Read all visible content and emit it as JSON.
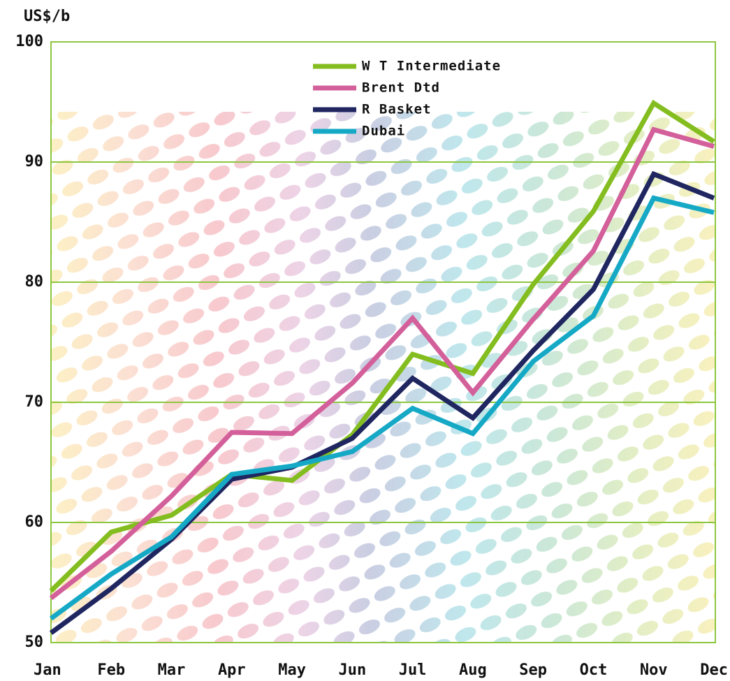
{
  "chart_data": {
    "type": "line",
    "y_label": "US$/b",
    "categories": [
      "Jan",
      "Feb",
      "Mar",
      "Apr",
      "May",
      "Jun",
      "Jul",
      "Aug",
      "Sep",
      "Oct",
      "Nov",
      "Dec"
    ],
    "series": [
      {
        "name": "W T Intermediate",
        "color": "#84bd1f",
        "values": [
          54.3,
          59.2,
          60.6,
          64.0,
          63.5,
          67.3,
          74.0,
          72.4,
          79.8,
          85.9,
          94.9,
          91.7
        ]
      },
      {
        "name": "Brent Dtd",
        "color": "#d3609a",
        "values": [
          53.7,
          57.6,
          62.2,
          67.5,
          67.4,
          71.6,
          77.0,
          70.8,
          76.9,
          82.6,
          92.7,
          91.3
        ]
      },
      {
        "name": "R Basket",
        "color": "#1f2660",
        "values": [
          50.8,
          54.5,
          58.6,
          63.6,
          64.6,
          67.0,
          72.0,
          68.7,
          74.3,
          79.4,
          89.0,
          87.0
        ]
      },
      {
        "name": "Dubai",
        "color": "#16a9c6",
        "values": [
          52.0,
          55.7,
          58.8,
          64.0,
          64.7,
          65.9,
          69.5,
          67.4,
          73.4,
          77.2,
          87.0,
          85.8
        ]
      }
    ],
    "ylim": [
      50,
      100
    ],
    "yticks": [
      50,
      60,
      70,
      80,
      90,
      100
    ],
    "grid": true,
    "frame_color": "#8dc63f"
  }
}
